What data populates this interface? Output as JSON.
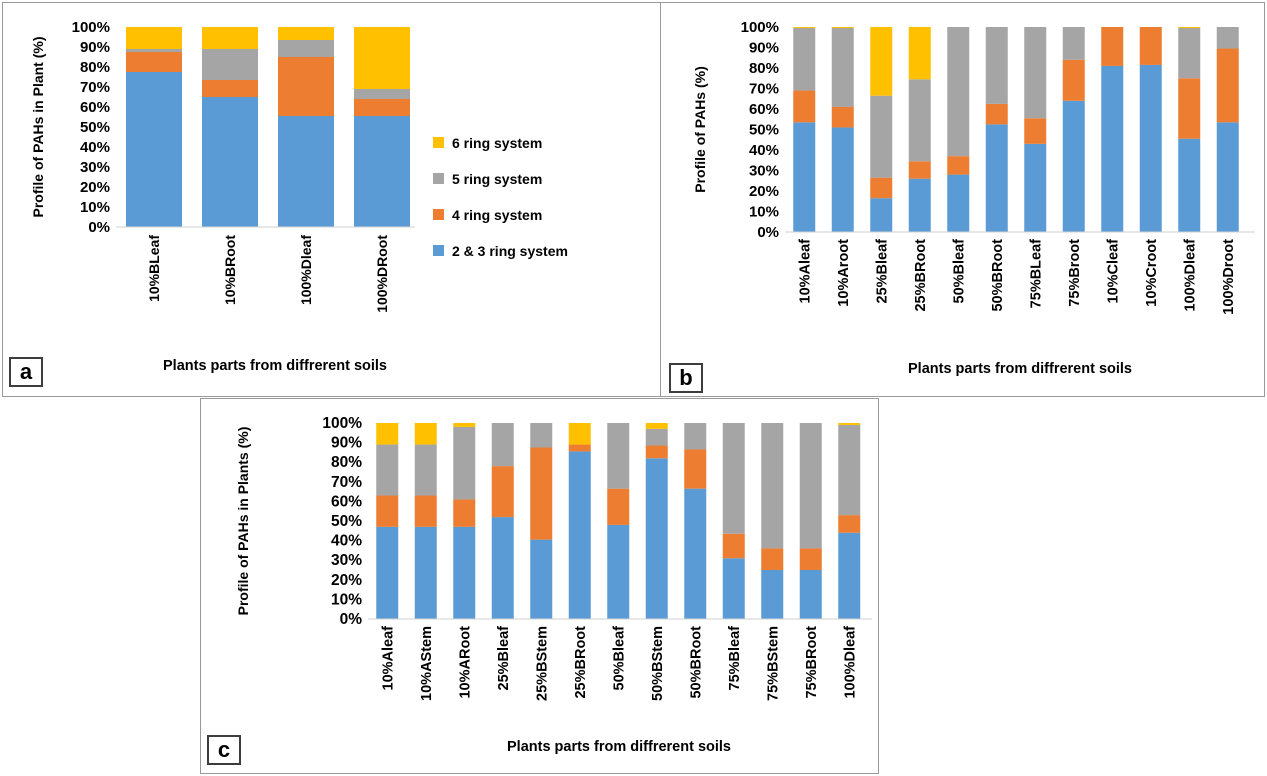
{
  "colors": {
    "ring_2_3": "#5B9BD5",
    "ring_4": "#ED7D31",
    "ring_5": "#A5A5A5",
    "ring_6": "#FFC000"
  },
  "legend": [
    {
      "label": "6 ring system",
      "color": "#FFC000"
    },
    {
      "label": "5 ring system",
      "color": "#A5A5A5"
    },
    {
      "label": "4 ring system",
      "color": "#ED7D31"
    },
    {
      "label": "2 & 3 ring system",
      "color": "#5B9BD5"
    }
  ],
  "chart_data": [
    {
      "panel": "a",
      "type": "bar",
      "stacked": true,
      "ylabel": "Profile of PAHs in Plant (%)",
      "xlabel": "Plants parts from diffrerent soils",
      "yticks": [
        "0%",
        "10%",
        "20%",
        "30%",
        "40%",
        "50%",
        "60%",
        "70%",
        "80%",
        "90%",
        "100%"
      ],
      "ylim": [
        0,
        100
      ],
      "categories": [
        "10%BLeaf",
        "10%BRoot",
        "100%Dleaf",
        "100%DRoot"
      ],
      "series": [
        {
          "name": "2 & 3 ring system",
          "color": "#5B9BD5",
          "values": [
            77.5,
            65,
            55.5,
            55.5
          ]
        },
        {
          "name": "4 ring system",
          "color": "#ED7D31",
          "values": [
            10,
            8.5,
            29.5,
            8.5
          ]
        },
        {
          "name": "5 ring system",
          "color": "#A5A5A5",
          "values": [
            1.5,
            15.5,
            8.5,
            5
          ]
        },
        {
          "name": "6 ring system",
          "color": "#FFC000",
          "values": [
            11,
            11,
            6.5,
            31
          ]
        }
      ]
    },
    {
      "panel": "b",
      "type": "bar",
      "stacked": true,
      "ylabel": "Profile of PAHs (%)",
      "xlabel": "Plants parts from diffrerent soils",
      "yticks": [
        "0%",
        "10%",
        "20%",
        "30%",
        "40%",
        "50%",
        "60%",
        "70%",
        "80%",
        "90%",
        "100%"
      ],
      "ylim": [
        0,
        100
      ],
      "categories": [
        "10%Aleaf",
        "10%Aroot",
        "25%Bleaf",
        "25%BRoot",
        "50%Bleaf",
        "50%BRoot",
        "75%BLeaf",
        "75%Broot",
        "10%Cleaf",
        "10%Croot",
        "100%Dleaf",
        "100%Droot"
      ],
      "series": [
        {
          "name": "2 & 3 ring system",
          "color": "#5B9BD5",
          "values": [
            53.5,
            51,
            16.5,
            26,
            28,
            52.5,
            43,
            64,
            81,
            81.5,
            45.5,
            53.5
          ]
        },
        {
          "name": "4 ring system",
          "color": "#ED7D31",
          "values": [
            15.5,
            10,
            10,
            8.5,
            9,
            10,
            12.5,
            20,
            19,
            18.5,
            29.5,
            36
          ]
        },
        {
          "name": "5 ring system",
          "color": "#A5A5A5",
          "values": [
            30.5,
            38.5,
            40,
            40,
            63,
            37.5,
            44.5,
            16,
            0,
            0,
            24.5,
            10.5
          ]
        },
        {
          "name": "6 ring system",
          "color": "#FFC000",
          "values": [
            0.5,
            0.5,
            33.5,
            25.5,
            0,
            0,
            0,
            0,
            0,
            0,
            0.5,
            0
          ]
        }
      ]
    },
    {
      "panel": "c",
      "type": "bar",
      "stacked": true,
      "ylabel": "Profile of PAHs in Plants (%)",
      "xlabel": "Plants parts from diffrerent soils",
      "yticks": [
        "0%",
        "10%",
        "20%",
        "30%",
        "40%",
        "50%",
        "60%",
        "70%",
        "80%",
        "90%",
        "100%"
      ],
      "ylim": [
        0,
        100
      ],
      "categories": [
        "10%Aleaf",
        "10%AStem",
        "10%ARoot",
        "25%Bleaf",
        "25%BStem",
        "25%BRoot",
        "50%Bleaf",
        "50%BStem",
        "50%BRoot",
        "75%Bleaf",
        "75%BStem",
        "75%BRoot",
        "100%Dleaf"
      ],
      "series": [
        {
          "name": "2 & 3 ring system",
          "color": "#5B9BD5",
          "values": [
            47,
            47,
            47,
            52,
            40.5,
            85.5,
            48,
            82,
            66.5,
            31,
            25,
            25,
            44
          ]
        },
        {
          "name": "4 ring system",
          "color": "#ED7D31",
          "values": [
            16,
            16,
            14,
            26,
            47,
            3.5,
            18.5,
            6.5,
            20,
            12.5,
            11,
            11,
            9
          ]
        },
        {
          "name": "5 ring system",
          "color": "#A5A5A5",
          "values": [
            26,
            26,
            37,
            22,
            12.5,
            0,
            33.5,
            8.5,
            13.5,
            56.5,
            64,
            64,
            46
          ]
        },
        {
          "name": "6 ring system",
          "color": "#FFC000",
          "values": [
            11,
            11,
            2,
            0,
            0,
            11,
            0,
            3,
            0,
            0,
            0,
            0,
            1
          ]
        }
      ]
    }
  ],
  "panel_labels": [
    "a",
    "b",
    "c"
  ]
}
